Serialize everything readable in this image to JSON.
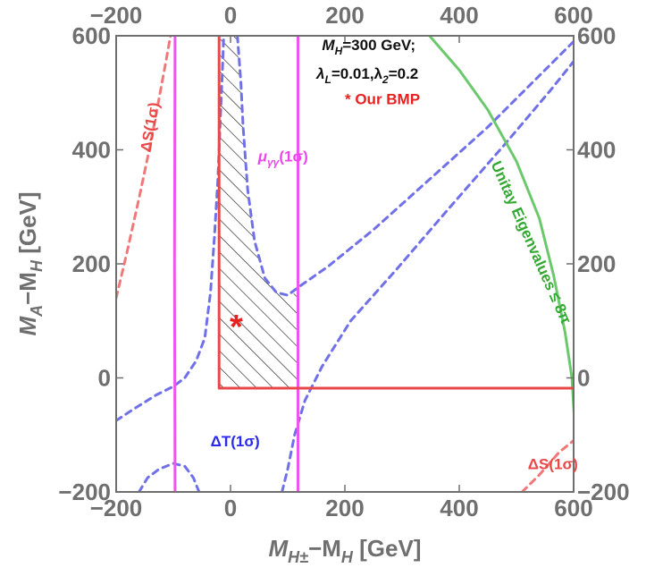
{
  "chart_data": {
    "type": "contour",
    "xlabel": {
      "main": "M",
      "sub": "H±",
      "rest": "−M",
      "sub2": "H",
      "unit": " [GeV]"
    },
    "ylabel": {
      "main": "M",
      "sub": "A",
      "rest": "−M",
      "sub2": "H",
      "unit": " [GeV]"
    },
    "xlim": [
      -200,
      600
    ],
    "ylim": [
      -200,
      600
    ],
    "xticks": [
      {
        "value": -200,
        "label": "−200"
      },
      {
        "value": 0,
        "label": "0"
      },
      {
        "value": 200,
        "label": "200"
      },
      {
        "value": 400,
        "label": "400"
      },
      {
        "value": 600,
        "label": "600"
      }
    ],
    "yticks": [
      {
        "value": -200,
        "label": "−200"
      },
      {
        "value": 0,
        "label": "0"
      },
      {
        "value": 200,
        "label": "200"
      },
      {
        "value": 400,
        "label": "400"
      },
      {
        "value": 600,
        "label": "600"
      }
    ],
    "grid": false,
    "colors": {
      "deltaS": "#f07878",
      "deltaT": "#7070e8",
      "mu": "#ee55ee",
      "unitarity": "#6cc86c",
      "allowed": "#e84848",
      "bmp": "#e82020",
      "text": "#111111",
      "axis": "#6f6f6f"
    },
    "series": [
      {
        "name": "ΔS(1σ)",
        "style": "dashed",
        "color": "#f07878",
        "points": [
          [
            -200,
            140
          ],
          [
            -180,
            225
          ],
          [
            -160,
            315
          ],
          [
            -140,
            410
          ],
          [
            -125,
            490
          ],
          [
            -112,
            560
          ],
          [
            -105,
            600
          ]
        ]
      },
      {
        "name": "ΔS(1σ)",
        "style": "dashed",
        "color": "#f07878",
        "points": [
          [
            510,
            -200
          ],
          [
            540,
            -170
          ],
          [
            575,
            -130
          ],
          [
            600,
            -110
          ]
        ]
      },
      {
        "name": "ΔT(1σ)",
        "style": "dashed",
        "color": "#7070e8",
        "points": [
          [
            -200,
            -75
          ],
          [
            -170,
            -55
          ],
          [
            -130,
            -30
          ],
          [
            -100,
            -15
          ],
          [
            -80,
            0
          ],
          [
            -60,
            30
          ],
          [
            -45,
            70
          ],
          [
            -35,
            150
          ],
          [
            -28,
            250
          ],
          [
            -22,
            350
          ],
          [
            -18,
            450
          ],
          [
            -15,
            520
          ],
          [
            -13,
            570
          ],
          [
            -12,
            600
          ]
        ]
      },
      {
        "name": "ΔT(1σ)",
        "style": "dashed",
        "color": "#7070e8",
        "points": [
          [
            -160,
            -200
          ],
          [
            -145,
            -175
          ],
          [
            -125,
            -160
          ],
          [
            -100,
            -150
          ],
          [
            -80,
            -155
          ],
          [
            -65,
            -175
          ],
          [
            -55,
            -200
          ]
        ]
      },
      {
        "name": "ΔT(1σ)",
        "style": "dashed",
        "color": "#7070e8",
        "points": [
          [
            12,
            600
          ],
          [
            18,
            520
          ],
          [
            22,
            440
          ],
          [
            30,
            330
          ],
          [
            42,
            240
          ],
          [
            60,
            175
          ],
          [
            80,
            150
          ],
          [
            100,
            145
          ],
          [
            120,
            160
          ],
          [
            170,
            195
          ],
          [
            250,
            260
          ],
          [
            350,
            350
          ],
          [
            450,
            440
          ],
          [
            530,
            520
          ],
          [
            600,
            590
          ]
        ]
      },
      {
        "name": "ΔT(1σ)",
        "style": "dashed",
        "color": "#7070e8",
        "points": [
          [
            90,
            -200
          ],
          [
            100,
            -160
          ],
          [
            112,
            -100
          ],
          [
            130,
            -40
          ],
          [
            160,
            20
          ],
          [
            210,
            100
          ],
          [
            290,
            190
          ],
          [
            380,
            295
          ],
          [
            480,
            410
          ],
          [
            560,
            505
          ],
          [
            600,
            555
          ]
        ]
      },
      {
        "name": "μγγ(1σ)",
        "style": "solid",
        "color": "#ee55ee",
        "points": [
          [
            -97,
            -200
          ],
          [
            -98,
            200
          ],
          [
            -97,
            600
          ]
        ]
      },
      {
        "name": "μγγ(1σ)",
        "style": "solid",
        "color": "#ee55ee",
        "points": [
          [
            118,
            -200
          ],
          [
            118,
            600
          ]
        ]
      },
      {
        "name": "Unitay Eigenvalues ≤ 8π",
        "style": "solid",
        "color": "#6cc86c",
        "points": [
          [
            348,
            600
          ],
          [
            400,
            540
          ],
          [
            450,
            470
          ],
          [
            500,
            380
          ],
          [
            540,
            280
          ],
          [
            565,
            180
          ],
          [
            585,
            80
          ],
          [
            597,
            0
          ],
          [
            603,
            -100
          ],
          [
            605,
            -200
          ]
        ]
      },
      {
        "name": "allowed-boundary",
        "style": "solid",
        "color": "#e84848",
        "points": [
          [
            -20,
            600
          ],
          [
            -20,
            -18
          ],
          [
            600,
            -18
          ]
        ]
      }
    ],
    "hatched_region": [
      [
        -20,
        600
      ],
      [
        10,
        600
      ],
      [
        18,
        520
      ],
      [
        22,
        440
      ],
      [
        30,
        330
      ],
      [
        42,
        240
      ],
      [
        60,
        175
      ],
      [
        80,
        150
      ],
      [
        100,
        145
      ],
      [
        118,
        150
      ],
      [
        118,
        -18
      ],
      [
        -20,
        -18
      ]
    ],
    "bmp_point": {
      "x": 10,
      "y": 90,
      "marker": "*"
    },
    "annotations": [
      {
        "key": "mh",
        "text": "M",
        "sub": "H",
        "rest": "=300 GeV;",
        "x": 160,
        "y": 575,
        "color": "#111111",
        "size": 17
      },
      {
        "key": "lam",
        "text": "λ",
        "sub": "L",
        "rest": "=0.01,λ",
        "sub2": "2",
        "rest2": "=0.2",
        "x": 150,
        "y": 525,
        "color": "#111111",
        "size": 17
      },
      {
        "key": "bmp",
        "text": "* Our BMP",
        "x": 200,
        "y": 480,
        "color": "#e82020",
        "size": 17
      },
      {
        "key": "mu",
        "text": "μ",
        "sub": "γγ",
        "rest": "(1σ)",
        "x": 48,
        "y": 380,
        "color": "#ee44ee",
        "size": 17
      },
      {
        "key": "ds1",
        "text": "ΔS(1σ)",
        "x": -140,
        "y": 395,
        "color": "#e84848",
        "size": 17,
        "rotate": -80
      },
      {
        "key": "dt",
        "text": "ΔT(1σ)",
        "x": -35,
        "y": -120,
        "color": "#2a2ae8",
        "size": 17
      },
      {
        "key": "ds2",
        "text": "ΔS(1σ)",
        "x": 520,
        "y": -160,
        "color": "#e84848",
        "size": 17
      },
      {
        "key": "unit",
        "text": "Unitay Eigenvalues ≤ 8π",
        "x": 455,
        "y": 375,
        "color": "#33a833",
        "size": 17,
        "rotate": 66
      }
    ]
  }
}
